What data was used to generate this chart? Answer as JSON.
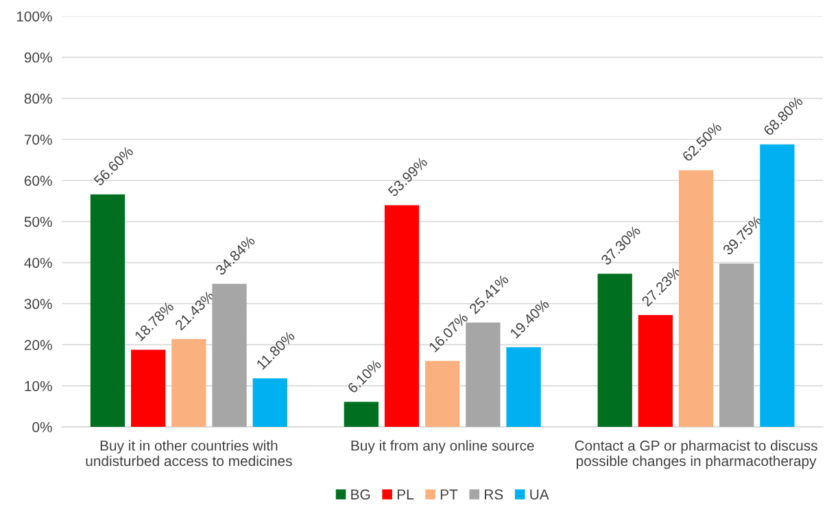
{
  "chart_data": {
    "type": "bar",
    "categories": [
      "Buy it in other countries with\nundisturbed access to medicines",
      "Buy it from any online source",
      "Contact a GP or pharmacist to discuss\npossible changes in pharmacotherapy"
    ],
    "series": [
      {
        "name": "BG",
        "color": "#007020",
        "values": [
          56.6,
          6.1,
          37.3
        ],
        "value_labels": [
          "56.60%",
          "6.10%",
          "37.30%"
        ]
      },
      {
        "name": "PL",
        "color": "#ff0000",
        "values": [
          18.78,
          53.99,
          27.23
        ],
        "value_labels": [
          "18.78%",
          "53.99%",
          "27.23%"
        ]
      },
      {
        "name": "PT",
        "color": "#fbb07f",
        "values": [
          21.43,
          16.07,
          62.5
        ],
        "value_labels": [
          "21.43%",
          "16.07%",
          "62.50%"
        ]
      },
      {
        "name": "RS",
        "color": "#a6a6a6",
        "values": [
          34.84,
          25.41,
          39.75
        ],
        "value_labels": [
          "34.84%",
          "25.41%",
          "39.75%"
        ]
      },
      {
        "name": "UA",
        "color": "#00b0f0",
        "values": [
          11.8,
          19.4,
          68.8
        ],
        "value_labels": [
          "11.80%",
          "19.40%",
          "68.80%"
        ]
      }
    ],
    "ylim": [
      0,
      100
    ],
    "yticks": [
      {
        "value": 0,
        "label": "0%"
      },
      {
        "value": 10,
        "label": "10%"
      },
      {
        "value": 20,
        "label": "20%"
      },
      {
        "value": 30,
        "label": "30%"
      },
      {
        "value": 40,
        "label": "40%"
      },
      {
        "value": 50,
        "label": "50%"
      },
      {
        "value": 60,
        "label": "60%"
      },
      {
        "value": 70,
        "label": "70%"
      },
      {
        "value": 80,
        "label": "80%"
      },
      {
        "value": 90,
        "label": "90%"
      },
      {
        "value": 100,
        "label": "100%"
      }
    ],
    "grid": "y",
    "legend": "bottom"
  }
}
